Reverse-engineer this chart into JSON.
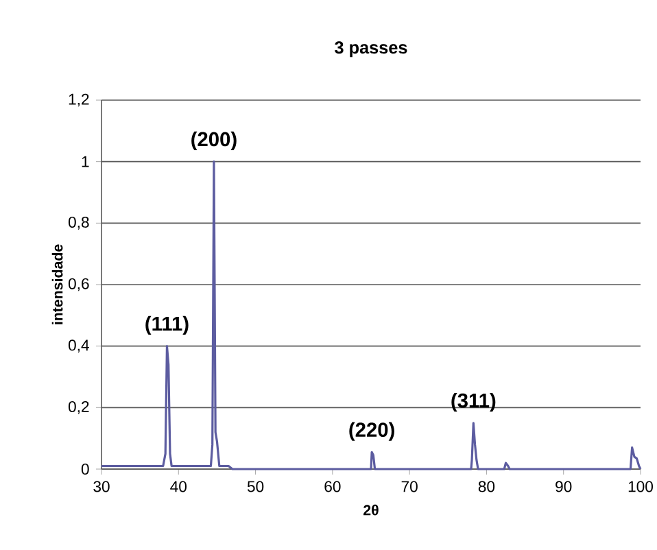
{
  "chart_data": {
    "type": "line",
    "title": "3 passes",
    "xlabel": "2θ",
    "ylabel": "intensidade",
    "x": [
      30,
      38,
      38.3,
      38.5,
      38.7,
      38.9,
      39.1,
      44.2,
      44.4,
      44.6,
      44.8,
      45.0,
      45.3,
      46.5,
      47,
      65,
      65.1,
      65.3,
      65.5,
      78.0,
      78.1,
      78.3,
      78.5,
      78.7,
      78.9,
      82.3,
      82.5,
      82.8,
      83,
      98.7,
      98.9,
      99.2,
      99.5,
      99.8,
      100
    ],
    "series": [
      {
        "color": "#5c5ca0",
        "values": [
          0.01,
          0.01,
          0.05,
          0.4,
          0.34,
          0.05,
          0.01,
          0.01,
          0.08,
          1.0,
          0.12,
          0.09,
          0.01,
          0.01,
          0,
          0,
          0.055,
          0.045,
          0,
          0,
          0.03,
          0.15,
          0.08,
          0.03,
          0,
          0,
          0.02,
          0.01,
          0,
          0,
          0.07,
          0.04,
          0.035,
          0.01,
          0
        ]
      }
    ],
    "xlim": [
      30,
      100
    ],
    "xticks": [
      30,
      40,
      50,
      60,
      70,
      80,
      90,
      100
    ],
    "ylim": [
      0,
      1.2
    ],
    "yticks": [
      0,
      {
        "value": 0.2,
        "label": "0,2"
      },
      {
        "value": 0.4,
        "label": "0,4"
      },
      {
        "value": 0.6,
        "label": "0,6"
      },
      {
        "value": 0.8,
        "label": "0,8"
      },
      1,
      {
        "value": 1.2,
        "label": "1,2"
      }
    ],
    "grid": "y",
    "marker": "none",
    "line_style": "solid",
    "annotations": [
      {
        "text": "(111)",
        "x": 38.5,
        "y": 0.4
      },
      {
        "text": "(200)",
        "x": 44.6,
        "y": 1.0
      },
      {
        "text": "(220)",
        "x": 65.1,
        "y": 0.055
      },
      {
        "text": "(311)",
        "x": 78.3,
        "y": 0.15
      }
    ]
  }
}
